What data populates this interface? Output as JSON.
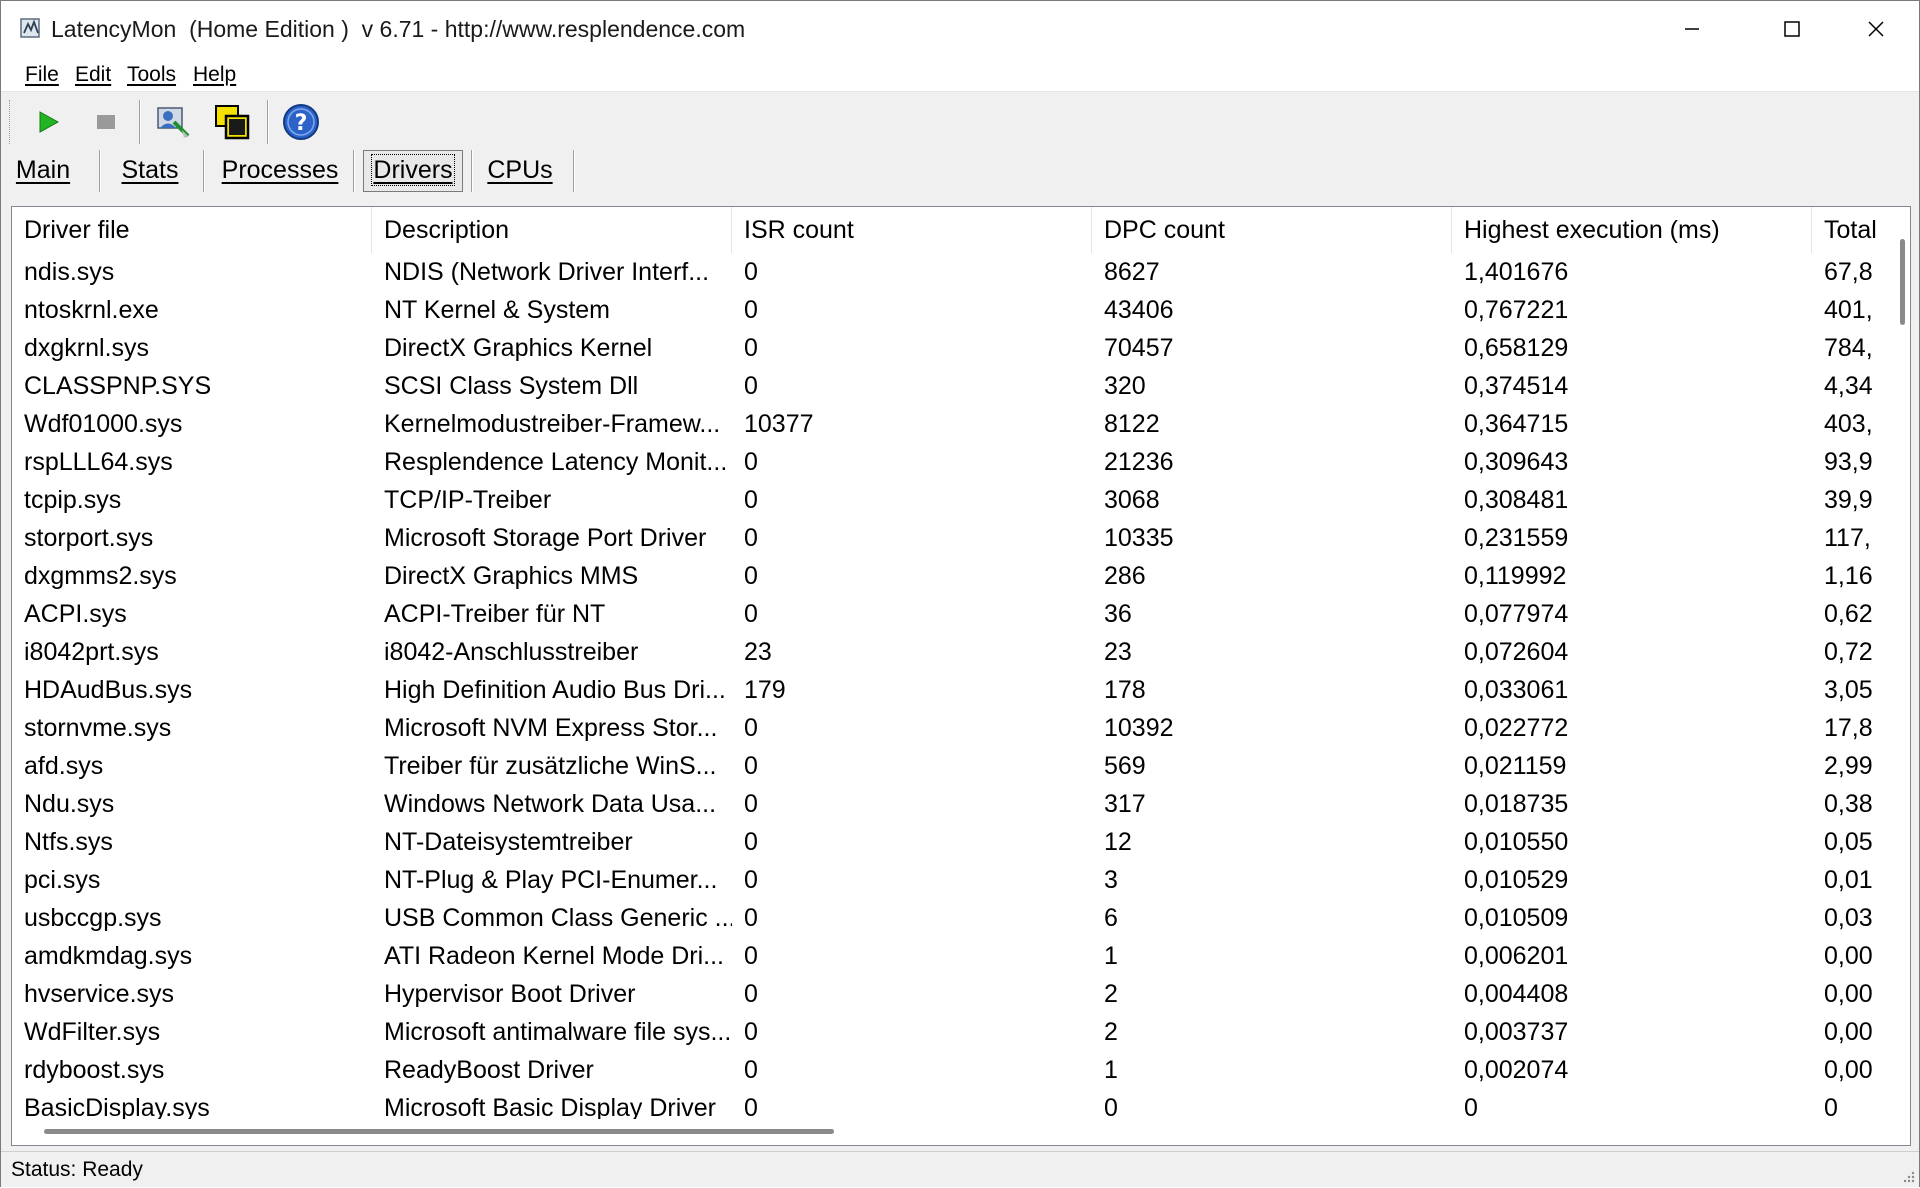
{
  "window": {
    "title": "LatencyMon  (Home Edition )  v 6.71 - http://www.resplendence.com"
  },
  "menu": [
    {
      "label": "File"
    },
    {
      "label": "Edit"
    },
    {
      "label": "Tools"
    },
    {
      "label": "Help"
    }
  ],
  "toolbar": {
    "icons": [
      "play-icon",
      "stop-icon",
      "user-settings-icon",
      "windows-icon",
      "help-icon"
    ]
  },
  "tabs": [
    {
      "label": "Main"
    },
    {
      "label": "Stats"
    },
    {
      "label": "Processes"
    },
    {
      "label": "Drivers",
      "active": true
    },
    {
      "label": "CPUs"
    }
  ],
  "table": {
    "columns": [
      "Driver file",
      "Description",
      "ISR count",
      "DPC count",
      "Highest execution (ms)",
      "Total"
    ],
    "rows": [
      [
        "ndis.sys",
        "NDIS (Network Driver Interf...",
        "0",
        "8627",
        "1,401676",
        "67,8"
      ],
      [
        "ntoskrnl.exe",
        "NT Kernel & System",
        "0",
        "43406",
        "0,767221",
        "401,"
      ],
      [
        "dxgkrnl.sys",
        "DirectX Graphics Kernel",
        "0",
        "70457",
        "0,658129",
        "784,"
      ],
      [
        "CLASSPNP.SYS",
        "SCSI Class System Dll",
        "0",
        "320",
        "0,374514",
        "4,34"
      ],
      [
        "Wdf01000.sys",
        "Kernelmodustreiber-Framew...",
        "10377",
        "8122",
        "0,364715",
        "403,"
      ],
      [
        "rspLLL64.sys",
        "Resplendence Latency Monit...",
        "0",
        "21236",
        "0,309643",
        "93,9"
      ],
      [
        "tcpip.sys",
        "TCP/IP-Treiber",
        "0",
        "3068",
        "0,308481",
        "39,9"
      ],
      [
        "storport.sys",
        "Microsoft Storage Port Driver",
        "0",
        "10335",
        "0,231559",
        "117,"
      ],
      [
        "dxgmms2.sys",
        "DirectX Graphics MMS",
        "0",
        "286",
        "0,119992",
        "1,16"
      ],
      [
        "ACPI.sys",
        "ACPI-Treiber für NT",
        "0",
        "36",
        "0,077974",
        "0,62"
      ],
      [
        "i8042prt.sys",
        "i8042-Anschlusstreiber",
        "23",
        "23",
        "0,072604",
        "0,72"
      ],
      [
        "HDAudBus.sys",
        "High Definition Audio Bus Dri...",
        "179",
        "178",
        "0,033061",
        "3,05"
      ],
      [
        "stornvme.sys",
        "Microsoft NVM Express Stor...",
        "0",
        "10392",
        "0,022772",
        "17,8"
      ],
      [
        "afd.sys",
        "Treiber für zusätzliche WinS...",
        "0",
        "569",
        "0,021159",
        "2,99"
      ],
      [
        "Ndu.sys",
        "Windows Network Data Usa...",
        "0",
        "317",
        "0,018735",
        "0,38"
      ],
      [
        "Ntfs.sys",
        "NT-Dateisystemtreiber",
        "0",
        "12",
        "0,010550",
        "0,05"
      ],
      [
        "pci.sys",
        "NT-Plug & Play PCI-Enumer...",
        "0",
        "3",
        "0,010529",
        "0,01"
      ],
      [
        "usbccgp.sys",
        "USB Common Class Generic ...",
        "0",
        "6",
        "0,010509",
        "0,03"
      ],
      [
        "amdkmdag.sys",
        "ATI Radeon Kernel Mode Dri...",
        "0",
        "1",
        "0,006201",
        "0,00"
      ],
      [
        "hvservice.sys",
        "Hypervisor Boot Driver",
        "0",
        "2",
        "0,004408",
        "0,00"
      ],
      [
        "WdFilter.sys",
        "Microsoft antimalware file sys...",
        "0",
        "2",
        "0,003737",
        "0,00"
      ],
      [
        "rdyboost.sys",
        "ReadyBoost Driver",
        "0",
        "1",
        "0,002074",
        "0,00"
      ],
      [
        "BasicDisplay.sys",
        "Microsoft Basic Display Driver",
        "0",
        "0",
        "0",
        "0"
      ]
    ]
  },
  "status": {
    "text": "Status: Ready"
  }
}
